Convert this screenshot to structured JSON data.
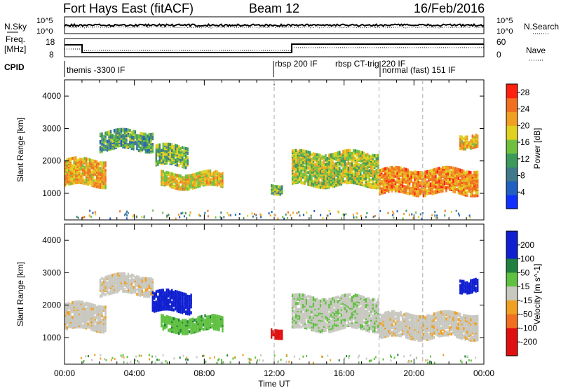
{
  "header": {
    "station": "Fort Hays East (fitACF)",
    "beam": "Beam 12",
    "date": "16/Feb/2016"
  },
  "panels": {
    "nsky_label": "N.Sky",
    "nsky_ticks": [
      "10^5",
      "10^0"
    ],
    "nsearch_label": "N.Search",
    "nsearch_ticks": [
      "10^5",
      "10^0"
    ],
    "freq_label_1": "Freq.",
    "freq_label_2": "[MHz]",
    "freq_ticks": [
      "18",
      "8"
    ],
    "nave_label": "Nave",
    "nave_ticks": [
      "60",
      "0"
    ],
    "cpid_label": "CPID",
    "cpid_segments": [
      "themis -3300 IF",
      "rbsp 200 IF",
      "rbsp CT-trig 220 IF",
      "normal (fast) 151 IF"
    ]
  },
  "chart_data": [
    {
      "type": "heatmap",
      "panel": "power",
      "ylabel": "Slant Range [km]",
      "colorbar_label": "Power [dB]",
      "colorbar_ticks": [
        "4",
        "8",
        "12",
        "16",
        "20",
        "24",
        "28"
      ],
      "colorbar_range": [
        0,
        30
      ],
      "x_ticks": [
        "00:00",
        "04:00",
        "08:00",
        "12:00",
        "16:00",
        "20:00",
        "00:00"
      ],
      "y_ticks": [
        "1000",
        "2000",
        "3000",
        "4000"
      ],
      "ylim": [
        180,
        4500
      ],
      "xlim_hours": [
        0,
        24
      ],
      "echo_regions": [
        {
          "start_h": 0.0,
          "end_h": 2.4,
          "range_low": 1300,
          "range_high": 2100,
          "power": 22
        },
        {
          "start_h": 2.0,
          "end_h": 5.0,
          "range_low": 2400,
          "range_high": 2950,
          "power": 14
        },
        {
          "start_h": 5.2,
          "end_h": 7.0,
          "range_low": 1900,
          "range_high": 2500,
          "power": 16
        },
        {
          "start_h": 5.5,
          "end_h": 9.0,
          "range_low": 1250,
          "range_high": 1700,
          "power": 20
        },
        {
          "start_h": 11.8,
          "end_h": 12.4,
          "range_low": 1100,
          "range_high": 1350,
          "power": 16
        },
        {
          "start_h": 13.0,
          "end_h": 18.0,
          "range_low": 1300,
          "range_high": 2300,
          "power": 18
        },
        {
          "start_h": 18.0,
          "end_h": 23.7,
          "range_low": 1050,
          "range_high": 1800,
          "power": 24
        },
        {
          "start_h": 22.6,
          "end_h": 23.7,
          "range_low": 2500,
          "range_high": 2900,
          "power": 22
        }
      ]
    },
    {
      "type": "heatmap",
      "panel": "velocity",
      "ylabel": "Slant Range [km]",
      "colorbar_label": "Velocity [m s^-1]",
      "colorbar_ticks": [
        "200",
        "100",
        "50",
        "15",
        "-15",
        "-50",
        "-100",
        "-200"
      ],
      "colorbar_range": [
        -250,
        250
      ],
      "x_ticks": [
        "00:00",
        "04:00",
        "08:00",
        "12:00",
        "16:00",
        "20:00",
        "00:00"
      ],
      "y_ticks": [
        "1000",
        "2000",
        "3000",
        "4000"
      ],
      "ylim": [
        180,
        4500
      ],
      "xlabel": "Time UT",
      "echo_regions": [
        {
          "start_h": 0.0,
          "end_h": 2.4,
          "range_low": 1300,
          "range_high": 2100,
          "velocity": 0
        },
        {
          "start_h": 2.0,
          "end_h": 5.0,
          "range_low": 2400,
          "range_high": 2950,
          "velocity": 0
        },
        {
          "start_h": 5.0,
          "end_h": 7.2,
          "range_low": 1850,
          "range_high": 2450,
          "velocity": 220
        },
        {
          "start_h": 5.5,
          "end_h": 9.0,
          "range_low": 1250,
          "range_high": 1700,
          "velocity": 60
        },
        {
          "start_h": 11.8,
          "end_h": 12.4,
          "range_low": 1100,
          "range_high": 1350,
          "velocity": -150
        },
        {
          "start_h": 13.0,
          "end_h": 18.0,
          "range_low": 1300,
          "range_high": 2300,
          "velocity": 20
        },
        {
          "start_h": 18.0,
          "end_h": 23.7,
          "range_low": 1050,
          "range_high": 1800,
          "velocity": 0
        },
        {
          "start_h": 22.6,
          "end_h": 23.7,
          "range_low": 2500,
          "range_high": 2900,
          "velocity": 220
        }
      ]
    }
  ]
}
